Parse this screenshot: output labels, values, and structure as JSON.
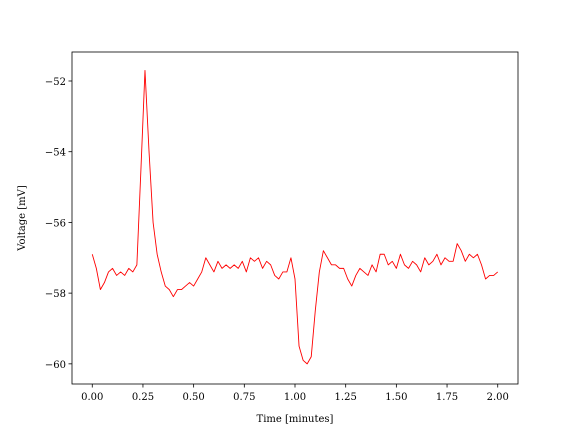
{
  "chart_data": {
    "type": "line",
    "x_label": "Time [minutes]",
    "y_label": "Voltage [mV]",
    "x": [
      0,
      0.02,
      0.04,
      0.06,
      0.08,
      0.1,
      0.12,
      0.14,
      0.16,
      0.18,
      0.2,
      0.22,
      0.24,
      0.26,
      0.28,
      0.3,
      0.32,
      0.34,
      0.36,
      0.38,
      0.4,
      0.42,
      0.44,
      0.46,
      0.48,
      0.5,
      0.52,
      0.54,
      0.56,
      0.58,
      0.6,
      0.62,
      0.64,
      0.66,
      0.68,
      0.7,
      0.72,
      0.74,
      0.76,
      0.78,
      0.8,
      0.82,
      0.84,
      0.86,
      0.88,
      0.9,
      0.92,
      0.94,
      0.96,
      0.98,
      1.0,
      1.02,
      1.04,
      1.06,
      1.08,
      1.1,
      1.12,
      1.14,
      1.16,
      1.18,
      1.2,
      1.22,
      1.24,
      1.26,
      1.28,
      1.3,
      1.32,
      1.34,
      1.36,
      1.38,
      1.4,
      1.42,
      1.44,
      1.46,
      1.48,
      1.5,
      1.52,
      1.54,
      1.56,
      1.58,
      1.6,
      1.62,
      1.64,
      1.66,
      1.68,
      1.7,
      1.72,
      1.74,
      1.76,
      1.78,
      1.8,
      1.82,
      1.84,
      1.86,
      1.88,
      1.9,
      1.92,
      1.94,
      1.96,
      1.98,
      2.0
    ],
    "series": [
      {
        "color": "#ff0000",
        "values": [
          -56.9,
          -57.3,
          -57.9,
          -57.7,
          -57.4,
          -57.3,
          -57.5,
          -57.4,
          -57.5,
          -57.3,
          -57.4,
          -57.2,
          -54.5,
          -51.7,
          -54.0,
          -56.0,
          -56.9,
          -57.4,
          -57.8,
          -57.9,
          -58.1,
          -57.9,
          -57.9,
          -57.8,
          -57.7,
          -57.8,
          -57.6,
          -57.4,
          -57.0,
          -57.2,
          -57.4,
          -57.1,
          -57.3,
          -57.2,
          -57.3,
          -57.2,
          -57.3,
          -57.1,
          -57.4,
          -57.0,
          -57.1,
          -57.0,
          -57.3,
          -57.1,
          -57.2,
          -57.5,
          -57.6,
          -57.4,
          -57.4,
          -57.0,
          -57.6,
          -59.5,
          -59.9,
          -60.0,
          -59.8,
          -58.5,
          -57.4,
          -56.8,
          -57.0,
          -57.2,
          -57.2,
          -57.3,
          -57.3,
          -57.6,
          -57.8,
          -57.5,
          -57.3,
          -57.4,
          -57.5,
          -57.2,
          -57.4,
          -56.9,
          -56.9,
          -57.2,
          -57.1,
          -57.3,
          -56.9,
          -57.2,
          -57.3,
          -57.1,
          -57.2,
          -57.4,
          -57.0,
          -57.2,
          -57.1,
          -56.9,
          -57.2,
          -57.0,
          -57.1,
          -57.1,
          -56.6,
          -56.8,
          -57.1,
          -56.9,
          -57.0,
          -56.9,
          -57.2,
          -57.6,
          -57.5,
          -57.5,
          -57.4
        ]
      }
    ],
    "xlim": [
      -0.1,
      2.1
    ],
    "ylim": [
      -60.57,
      -51.18
    ],
    "xticks": [
      {
        "value": 0,
        "label": "0.00"
      },
      {
        "value": 0.25,
        "label": "0.25"
      },
      {
        "value": 0.5,
        "label": "0.50"
      },
      {
        "value": 0.75,
        "label": "0.75"
      },
      {
        "value": 1,
        "label": "1.00"
      },
      {
        "value": 1.25,
        "label": "1.25"
      },
      {
        "value": 1.5,
        "label": "1.50"
      },
      {
        "value": 1.75,
        "label": "1.75"
      },
      {
        "value": 2,
        "label": "2.00"
      }
    ],
    "yticks": [
      {
        "value": -52,
        "label": "−52"
      },
      {
        "value": -54,
        "label": "−54"
      },
      {
        "value": -56,
        "label": "−56"
      },
      {
        "value": -58,
        "label": "−58"
      },
      {
        "value": -60,
        "label": "−60"
      }
    ],
    "grid": false
  }
}
